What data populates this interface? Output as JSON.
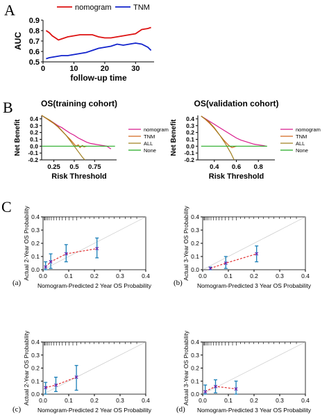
{
  "panel_letters": {
    "a": "A",
    "b": "B",
    "c": "C"
  },
  "sub_letters": {
    "a": "(a)",
    "b": "(b)",
    "c": "(c)",
    "d": "(d)"
  },
  "chart_data": [
    {
      "id": "auc",
      "type": "line",
      "xlabel": "follow-up time",
      "ylabel": "AUC",
      "xlim": [
        0,
        36
      ],
      "ylim": [
        0.5,
        0.9
      ],
      "xticks": [
        0,
        10,
        20,
        30
      ],
      "yticks": [
        0.5,
        0.6,
        0.7,
        0.8,
        0.9
      ],
      "legend_position": "top",
      "series": [
        {
          "name": "nomogram",
          "color": "#dd1111",
          "x": [
            1,
            2,
            3,
            4,
            5,
            6,
            8,
            10,
            12,
            14,
            16,
            18,
            20,
            22,
            24,
            26,
            28,
            30,
            32,
            34,
            35
          ],
          "y": [
            0.8,
            0.78,
            0.75,
            0.73,
            0.71,
            0.72,
            0.74,
            0.75,
            0.76,
            0.76,
            0.76,
            0.74,
            0.73,
            0.73,
            0.74,
            0.75,
            0.76,
            0.77,
            0.81,
            0.82,
            0.83
          ]
        },
        {
          "name": "TNM",
          "color": "#1122cc",
          "x": [
            1,
            2,
            4,
            6,
            8,
            10,
            12,
            14,
            16,
            18,
            20,
            22,
            24,
            26,
            28,
            30,
            32,
            34,
            35
          ],
          "y": [
            0.53,
            0.54,
            0.55,
            0.56,
            0.56,
            0.57,
            0.58,
            0.59,
            0.61,
            0.63,
            0.64,
            0.65,
            0.67,
            0.66,
            0.67,
            0.68,
            0.67,
            0.64,
            0.61
          ]
        }
      ]
    },
    {
      "id": "dca-training",
      "type": "line",
      "title": "OS(training cohort)",
      "xlabel": "Risk Threshold",
      "ylabel": "Net Benefit",
      "xlim": [
        0.1,
        1.02
      ],
      "ylim": [
        -0.2,
        0.45
      ],
      "xticks": [
        0.25,
        0.5,
        0.75
      ],
      "yticks": [
        -0.2,
        -0.1,
        0.0,
        0.1,
        0.2,
        0.3,
        0.4
      ],
      "legend_position": "right",
      "series": [
        {
          "name": "nomogram",
          "color": "#d81b8c",
          "x": [
            0.1,
            0.15,
            0.2,
            0.25,
            0.3,
            0.35,
            0.4,
            0.45,
            0.5,
            0.55,
            0.6,
            0.65,
            0.7,
            0.75,
            0.8,
            0.85,
            0.9,
            0.95
          ],
          "y": [
            0.45,
            0.41,
            0.38,
            0.34,
            0.3,
            0.27,
            0.23,
            0.19,
            0.16,
            0.12,
            0.09,
            0.06,
            0.04,
            0.03,
            0.02,
            0.01,
            0.0,
            -0.04
          ]
        },
        {
          "name": "TNM",
          "color": "#d2691e",
          "x": [
            0.1,
            0.15,
            0.2,
            0.25,
            0.3,
            0.35,
            0.4,
            0.45,
            0.5,
            0.52,
            0.55,
            0.57,
            0.6,
            0.62,
            0.65
          ],
          "y": [
            0.45,
            0.41,
            0.37,
            0.33,
            0.28,
            0.22,
            0.16,
            0.1,
            0.03,
            0.0,
            0.02,
            -0.02,
            0.01,
            -0.01,
            0.0
          ]
        },
        {
          "name": "ALL",
          "color": "#a08020",
          "x": [
            0.1,
            0.2,
            0.3,
            0.4,
            0.45,
            0.5,
            0.55,
            0.6,
            0.63
          ],
          "y": [
            0.45,
            0.38,
            0.29,
            0.16,
            0.08,
            0.0,
            -0.08,
            -0.16,
            -0.2
          ]
        },
        {
          "name": "None",
          "color": "#22aa22",
          "x": [
            0.1,
            1.0
          ],
          "y": [
            0.0,
            0.0
          ]
        }
      ]
    },
    {
      "id": "dca-validation",
      "type": "line",
      "title": "OS(validation cohort)",
      "xlabel": "Risk Threshold",
      "ylabel": "Net Benefit",
      "xlim": [
        0.25,
        0.95
      ],
      "ylim": [
        -0.2,
        0.45
      ],
      "xticks": [
        0.4,
        0.6,
        0.8
      ],
      "yticks": [
        -0.2,
        -0.1,
        0.0,
        0.1,
        0.2,
        0.3,
        0.4
      ],
      "legend_position": "right",
      "series": [
        {
          "name": "nomogram",
          "color": "#d81b8c",
          "x": [
            0.28,
            0.32,
            0.36,
            0.4,
            0.44,
            0.48,
            0.52,
            0.56,
            0.6,
            0.64,
            0.68,
            0.72,
            0.76,
            0.8,
            0.84,
            0.87
          ],
          "y": [
            0.44,
            0.4,
            0.36,
            0.32,
            0.28,
            0.24,
            0.2,
            0.16,
            0.12,
            0.09,
            0.07,
            0.05,
            0.03,
            0.02,
            0.01,
            0.0
          ]
        },
        {
          "name": "TNM",
          "color": "#d2691e",
          "x": [
            0.28,
            0.32,
            0.36,
            0.4,
            0.44,
            0.48,
            0.52,
            0.54,
            0.56,
            0.58,
            0.6
          ],
          "y": [
            0.44,
            0.39,
            0.33,
            0.26,
            0.18,
            0.1,
            0.03,
            0.0,
            -0.02,
            -0.01,
            0.0
          ]
        },
        {
          "name": "ALL",
          "color": "#a08020",
          "x": [
            0.28,
            0.35,
            0.4,
            0.45,
            0.5,
            0.55,
            0.58
          ],
          "y": [
            0.44,
            0.36,
            0.27,
            0.16,
            0.04,
            -0.1,
            -0.2
          ]
        },
        {
          "name": "None",
          "color": "#22aa22",
          "x": [
            0.28,
            0.88
          ],
          "y": [
            0.0,
            0.0
          ]
        }
      ]
    },
    {
      "id": "calib-a",
      "type": "scatter",
      "xlabel": "Nomogram-Predicted 2 Year OS Probability",
      "ylabel": "Actual 2-Year OS Probability",
      "xlim": [
        0,
        0.4
      ],
      "ylim": [
        0,
        0.4
      ],
      "xticks": [
        0.0,
        0.1,
        0.2,
        0.3,
        0.4
      ],
      "yticks": [
        0.0,
        0.1,
        0.2,
        0.3,
        0.4
      ],
      "points": [
        {
          "x": 0.01,
          "y": 0.02,
          "lo": 0.0,
          "hi": 0.06
        },
        {
          "x": 0.03,
          "y": 0.06,
          "lo": 0.01,
          "hi": 0.12
        },
        {
          "x": 0.09,
          "y": 0.12,
          "lo": 0.06,
          "hi": 0.19
        },
        {
          "x": 0.21,
          "y": 0.16,
          "lo": 0.09,
          "hi": 0.24
        }
      ]
    },
    {
      "id": "calib-b",
      "type": "scatter",
      "xlabel": "Nomogram-Predicted 3 Year OS Probability",
      "ylabel": "Actual 3-Year OS Probability",
      "xlim": [
        0,
        0.4
      ],
      "ylim": [
        0,
        0.4
      ],
      "xticks": [
        0.0,
        0.1,
        0.2,
        0.3,
        0.4
      ],
      "yticks": [
        0.0,
        0.1,
        0.2,
        0.3,
        0.4
      ],
      "points": [
        {
          "x": 0.03,
          "y": 0.01,
          "lo": 0.0,
          "hi": 0.02
        },
        {
          "x": 0.09,
          "y": 0.05,
          "lo": 0.01,
          "hi": 0.1
        },
        {
          "x": 0.21,
          "y": 0.12,
          "lo": 0.06,
          "hi": 0.18
        }
      ]
    },
    {
      "id": "calib-c",
      "type": "scatter",
      "xlabel": "Nomogram-Predicted 2 Year OS Probability",
      "ylabel": "Actual 2-Year OS Probability",
      "xlim": [
        0,
        0.4
      ],
      "ylim": [
        0,
        0.4
      ],
      "xticks": [
        0.0,
        0.1,
        0.2,
        0.3,
        0.4
      ],
      "yticks": [
        0.0,
        0.1,
        0.2,
        0.3,
        0.4
      ],
      "points": [
        {
          "x": 0.01,
          "y": 0.05,
          "lo": 0.0,
          "hi": 0.09
        },
        {
          "x": 0.05,
          "y": 0.07,
          "lo": 0.02,
          "hi": 0.13
        },
        {
          "x": 0.13,
          "y": 0.13,
          "lo": 0.03,
          "hi": 0.22
        }
      ]
    },
    {
      "id": "calib-d",
      "type": "scatter",
      "xlabel": "Nomogram-Predicted 3 Year OS Probability",
      "ylabel": "Actual 3-Year OS Probability",
      "xlim": [
        0,
        0.4
      ],
      "ylim": [
        0,
        0.4
      ],
      "xticks": [
        0.0,
        0.1,
        0.2,
        0.3,
        0.4
      ],
      "yticks": [
        0.0,
        0.1,
        0.2,
        0.3,
        0.4
      ],
      "points": [
        {
          "x": 0.01,
          "y": 0.02,
          "lo": 0.0,
          "hi": 0.07
        },
        {
          "x": 0.05,
          "y": 0.06,
          "lo": 0.01,
          "hi": 0.11
        },
        {
          "x": 0.13,
          "y": 0.04,
          "lo": 0.0,
          "hi": 0.1
        }
      ]
    }
  ]
}
